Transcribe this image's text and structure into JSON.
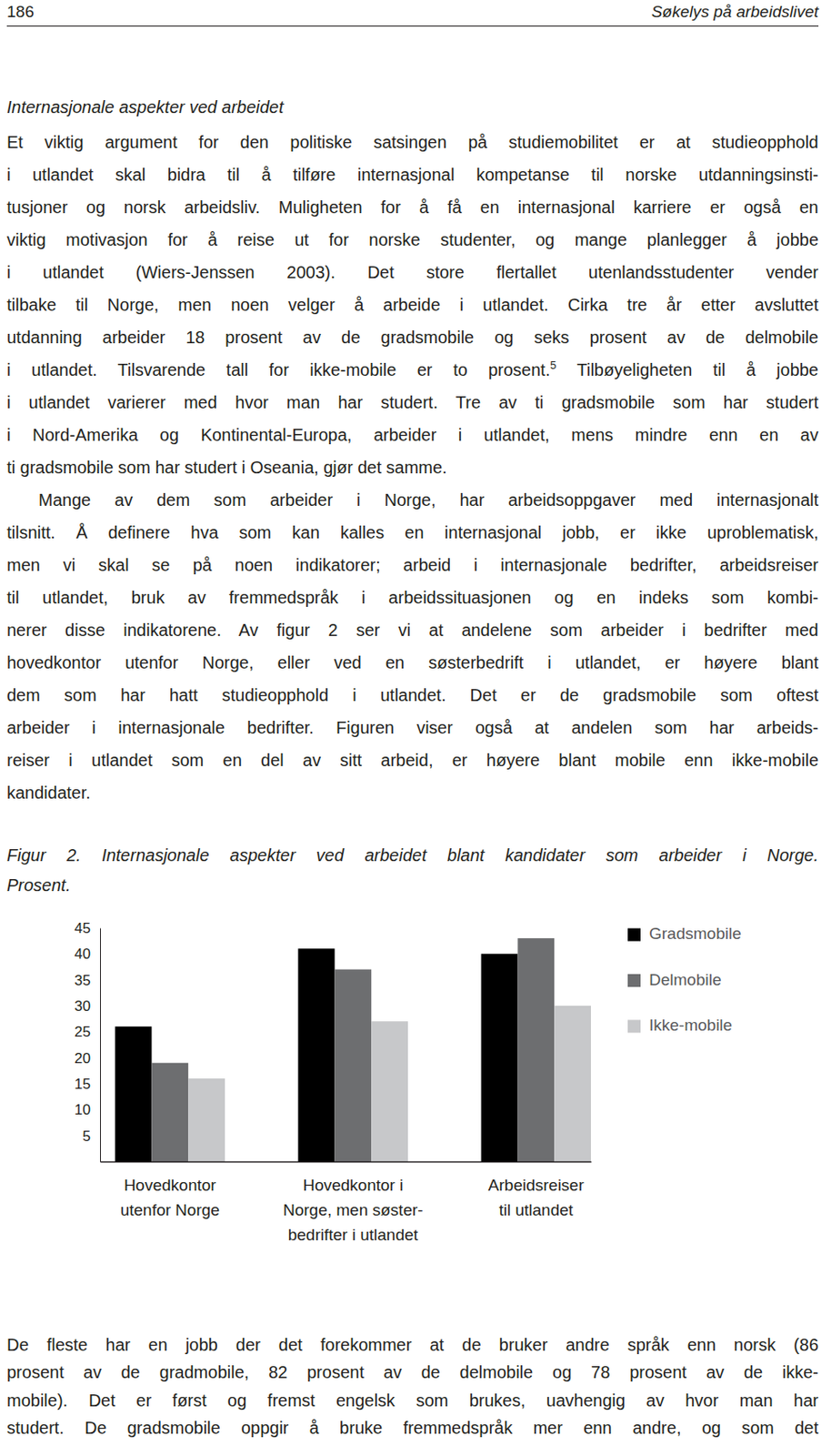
{
  "header": {
    "page_number": "186",
    "running_title": "Søkelys på arbeidslivet"
  },
  "section_title": "Internasjonale aspekter ved arbeidet",
  "paragraphs": [
    {
      "lines": [
        "Et viktig argument for den politiske satsingen på studiemobilitet er at studieopphold",
        "i utlandet skal bidra til å tilføre internasjonal kompetanse til norske utdanningsinsti-",
        "tusjoner og norsk arbeidsliv. Muligheten for å få en internasjonal karriere er også en",
        "viktig motivasjon for å reise ut for norske studenter, og mange planlegger å jobbe",
        "i utlandet (Wiers-Jenssen 2003). Det store flertallet utenlandsstudenter vender",
        "tilbake til Norge, men noen velger å arbeide i utlandet. Cirka tre år etter avsluttet",
        "utdanning arbeider 18 prosent av de gradsmobile og seks prosent av de delmobile",
        [
          {
            "text": "i utlandet. Tilsvarende tall for ikke-mobile er to prosent."
          },
          {
            "sup": "5"
          },
          {
            "text": " Tilbøyeligheten til å jobbe"
          }
        ],
        "i utlandet varierer med hvor man har studert. Tre av ti gradsmobile som har studert",
        "i Nord-Amerika og Kontinental-Europa, arbeider i utlandet, mens mindre enn en av",
        "ti gradsmobile som har studert i Oseania, gjør det samme."
      ]
    },
    {
      "lines": [
        "Mange av dem som arbeider i Norge, har arbeidsoppgaver med internasjonalt",
        "tilsnitt. Å definere hva som kan kalles en internasjonal jobb, er ikke uproblematisk,",
        "men vi skal se på noen indikatorer; arbeid i internasjonale bedrifter, arbeidsreiser",
        "til utlandet, bruk av fremmedspråk i arbeidssituasjonen og en indeks som kombi-",
        "nerer disse indikatorene. Av figur 2 ser vi at andelene som arbeider i bedrifter med",
        "hovedkontor utenfor Norge, eller ved en søsterbedrift i utlandet, er høyere blant",
        "dem som har hatt studieopphold i utlandet. Det er de gradsmobile som oftest",
        "arbeider i internasjonale bedrifter. Figuren viser også at andelen som har arbeids-",
        "reiser i utlandet som en del av sitt arbeid, er høyere blant mobile enn ikke-mobile",
        "kandidater."
      ]
    }
  ],
  "figure_caption": {
    "lines": [
      "Figur 2. Internasjonale aspekter ved arbeidet blant kandidater som arbeider i Norge.",
      "Prosent."
    ]
  },
  "chart_data": {
    "type": "bar",
    "categories": [
      "Hovedkontor\nutenfor Norge",
      "Hovedkontor i\nNorge, men søster-\nbedrifter i utlandet",
      "Arbeidsreiser\ntil utlandet"
    ],
    "series": [
      {
        "name": "Gradsmobile",
        "color": "#000000",
        "values": [
          26,
          41,
          40
        ]
      },
      {
        "name": "Delmobile",
        "color": "#6d6e70",
        "values": [
          19,
          37,
          43
        ]
      },
      {
        "name": "Ikke-mobile",
        "color": "#c7c8ca",
        "values": [
          16,
          27,
          30
        ]
      }
    ],
    "ylim": [
      0,
      45
    ],
    "yticks": [
      5,
      10,
      15,
      20,
      25,
      30,
      35,
      40,
      45
    ],
    "grid": false,
    "legend": "right"
  },
  "paragraphs_after": [
    {
      "lines": [
        "De fleste har en jobb der det forekommer at de bruker andre språk enn norsk (86",
        "prosent av de gradmobile, 82 prosent av de delmobile og 78 prosent av de ikke-",
        "mobile). Det er først og fremst engelsk som brukes, uavhengig av hvor man har",
        "studert. De gradsmobile oppgir å bruke fremmedspråk mer enn andre, og som det"
      ]
    }
  ]
}
